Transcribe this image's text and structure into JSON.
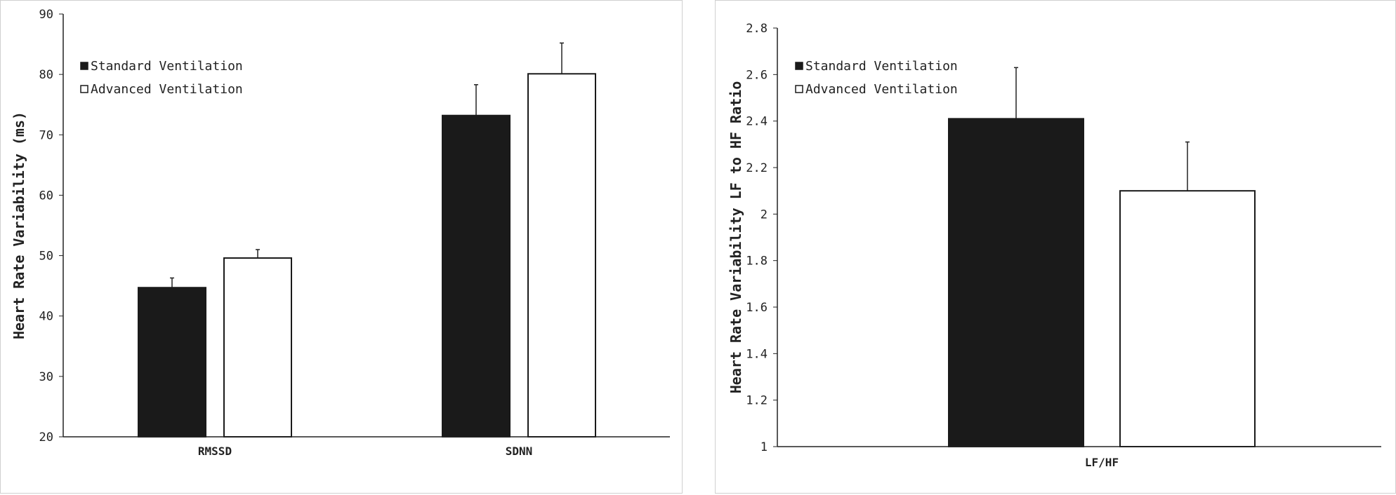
{
  "chart_data": [
    {
      "type": "bar",
      "categories": [
        "RMSSD",
        "SDNN"
      ],
      "series": [
        {
          "name": "Standard Ventilation",
          "color": "#1a1a1a",
          "values": [
            44.7,
            73.2
          ],
          "errors": [
            1.6,
            5.1
          ]
        },
        {
          "name": "Advanced Ventilation",
          "color": "#ffffff",
          "values": [
            49.6,
            80.1
          ],
          "errors": [
            1.4,
            5.1
          ]
        }
      ],
      "ylabel": "Heart Rate Variability  (ms)",
      "ylim": [
        20,
        90
      ],
      "yticks": [
        "20",
        "30",
        "40",
        "50",
        "60",
        "70",
        "80",
        "90"
      ],
      "grid": false,
      "legend": "top-left"
    },
    {
      "type": "bar",
      "categories": [
        "LF/HF"
      ],
      "series": [
        {
          "name": "Standard Ventilation",
          "color": "#1a1a1a",
          "values": [
            2.41
          ],
          "errors": [
            0.22
          ]
        },
        {
          "name": "Advanced Ventilation",
          "color": "#ffffff",
          "values": [
            2.1
          ],
          "errors": [
            0.21
          ]
        }
      ],
      "ylabel": "Heart Rate Variability LF to HF Ratio",
      "ylim": [
        1,
        2.8
      ],
      "yticks": [
        "1",
        "1.2",
        "1.4",
        "1.6",
        "1.8",
        "2",
        "2.2",
        "2.4",
        "2.6",
        "2.8"
      ],
      "grid": false,
      "legend": "top-left"
    }
  ]
}
